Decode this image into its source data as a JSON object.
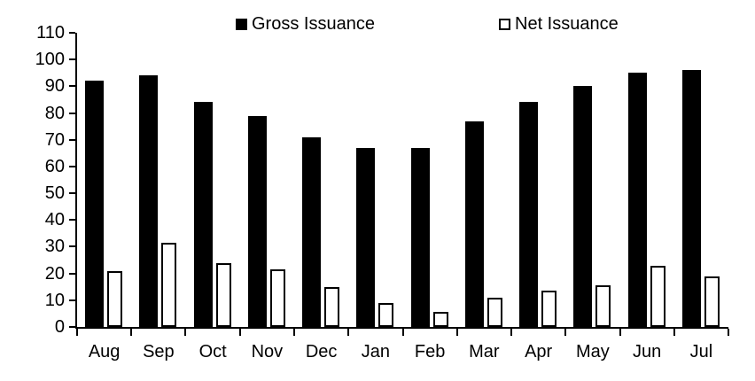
{
  "chart_data": {
    "type": "bar",
    "categories": [
      "Aug",
      "Sep",
      "Oct",
      "Nov",
      "Dec",
      "Jan",
      "Feb",
      "Mar",
      "Apr",
      "May",
      "Jun",
      "Jul"
    ],
    "series": [
      {
        "name": "Gross Issuance",
        "style": "filled",
        "color": "#000000",
        "values": [
          92,
          94,
          84,
          79,
          71,
          67,
          67,
          77,
          84,
          90,
          95,
          96
        ]
      },
      {
        "name": "Net Issuance",
        "style": "outlined",
        "color": "#ffffff",
        "border_color": "#000000",
        "values": [
          21,
          31.5,
          24,
          21.5,
          15,
          9,
          5.5,
          11,
          13.5,
          15.5,
          23,
          19
        ]
      }
    ],
    "title": "",
    "xlabel": "",
    "ylabel": "",
    "ylim": [
      0,
      110
    ],
    "ytick_step": 10,
    "grid": false,
    "legend_position": "top"
  },
  "colors": {
    "background": "#ffffff",
    "axis": "#000000",
    "text": "#000000"
  }
}
